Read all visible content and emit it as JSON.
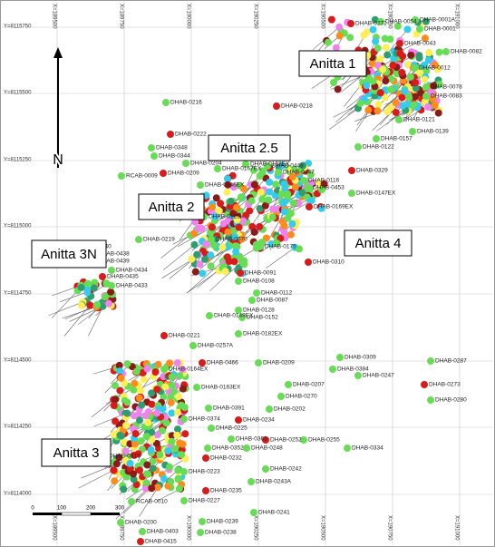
{
  "map": {
    "north": "N",
    "x_labels": [
      "X=189500",
      "X=189750",
      "X=190000",
      "X=190250",
      "X=190500",
      "X=190750",
      "X=191000"
    ],
    "y_labels": [
      "Y=8115750",
      "Y=8115500",
      "Y=8115250",
      "Y=8115000",
      "Y=8114750",
      "Y=8114500",
      "Y=8114250",
      "Y=8114000"
    ],
    "regions": [
      "Anitta 1",
      "Anitta 2.5",
      "Anitta 2",
      "Anitta 4",
      "Anitta 3N",
      "Anitta 3"
    ],
    "scale_labels": [
      "0",
      "100",
      "200",
      "300"
    ],
    "holes": [
      "DHAB-0272",
      "DHAB-0054",
      "DHAB-0001A",
      "DHAB-0001",
      "DHAB-0082",
      "DHAB-0043",
      "DHAB-0012",
      "DHAB-0078",
      "DHAB-0083",
      "DHAB-0216",
      "DHAB-0218",
      "DHAB-0121",
      "DHAB-0139",
      "DHAB-0157",
      "DHAB-0122",
      "DHAB-0222",
      "DHAB-0348",
      "DHAB-0344",
      "DHAB-0204",
      "RCAB-0009",
      "DHAB-0209",
      "DHAB-0167EX",
      "DHAB-0168EX",
      "DHAB-0448",
      "DHAB-0447",
      "DHAB-0329",
      "DHAB-0116",
      "DHAB-0453",
      "DHAB-0147EX",
      "DHAB-0146EX",
      "DHAB-0169EX",
      "DHAB-0219",
      "DHAB-0125",
      "DHAB-0070",
      "DHAB-0175",
      "DHAB-0091",
      "DHAB-0108",
      "DHAB-0112",
      "DHAB-0087",
      "DHAB-0128",
      "DHAB-0310",
      "DHAB-0440",
      "DHAB-0438",
      "DHAB-0439",
      "DHAB-0434",
      "DHAB-0435",
      "DHAB-0433",
      "DHAB-0149EX",
      "DHAB-0152",
      "DHAB-0182EX",
      "DHAB-0221",
      "DHAB-0257A",
      "DHAB-0309",
      "DHAB-0384",
      "DHAB-0247",
      "DHAB-0466",
      "DHAB-0209",
      "DHAB-0207",
      "DHAB-0270",
      "DHAB-0287",
      "DHAB-0273",
      "DHAB-0280",
      "DHAB-0164EX",
      "DHAB-0163EX",
      "DHAB-0391",
      "DHAB-0234",
      "DHAB-0202",
      "DHAB-0374",
      "DHAB-0225",
      "DHAB-0363",
      "DHAB-0252",
      "DHAB-0255",
      "DHAB-0352",
      "DHAB-0248",
      "DHAB-0334",
      "DHAB-0232",
      "DHAB-0242",
      "DHAB-0243A",
      "DHAB-0223",
      "DHAB-0227",
      "DHAB-0235",
      "DHAB-0241",
      "DHAB-0239",
      "DHAB-0238",
      "DHAB-0403",
      "DHAB-0415",
      "DHAB-0200",
      "RCAB-0010",
      "DHAB-0315"
    ]
  }
}
